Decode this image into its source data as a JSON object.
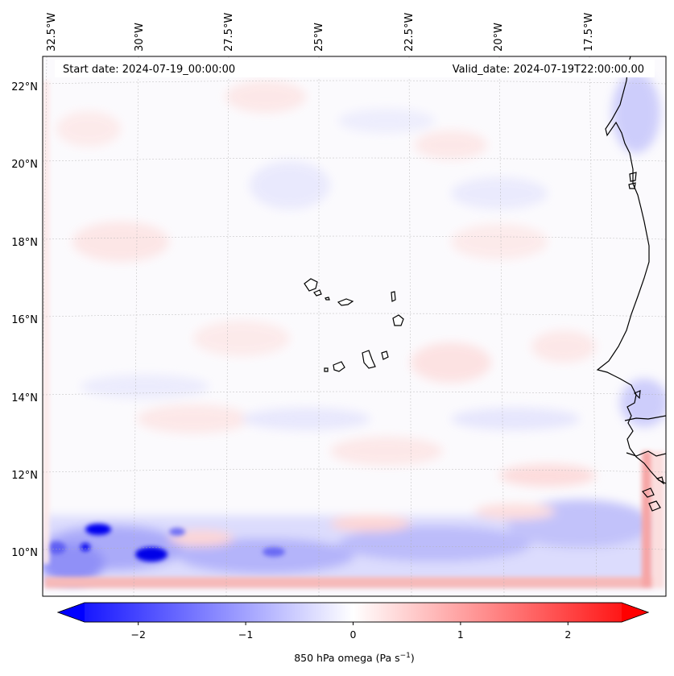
{
  "header": {
    "start_date": "Start date: 2024-07-19_00:00:00",
    "valid_date": "Valid_date: 2024-07-19T22:00:00.00"
  },
  "axes": {
    "lon_labels": [
      "32.5°W",
      "30°W",
      "27.5°W",
      "25°W",
      "22.5°W",
      "20°W",
      "17.5°W"
    ],
    "lat_labels": [
      "22°N",
      "20°N",
      "18°N",
      "16°N",
      "14°N",
      "12°N",
      "10°N"
    ]
  },
  "colorbar": {
    "label": "850 hPa omega (Pa s",
    "label_sup": "−1",
    "label_end": ")",
    "ticks": [
      "−2",
      "−1",
      "0",
      "1",
      "2"
    ],
    "tick_values": [
      -2,
      -1,
      0,
      1,
      2
    ],
    "range": [
      -2.5,
      2.5
    ],
    "colors": {
      "negative": "#0000ff",
      "zero": "#ffffff",
      "positive": "#ff0000"
    }
  },
  "map": {
    "variable": "850 hPa omega",
    "units": "Pa s-1",
    "lon_range": [
      -33,
      -15.5
    ],
    "lat_range": [
      9,
      22.7
    ],
    "coastline_color": "#000000"
  }
}
